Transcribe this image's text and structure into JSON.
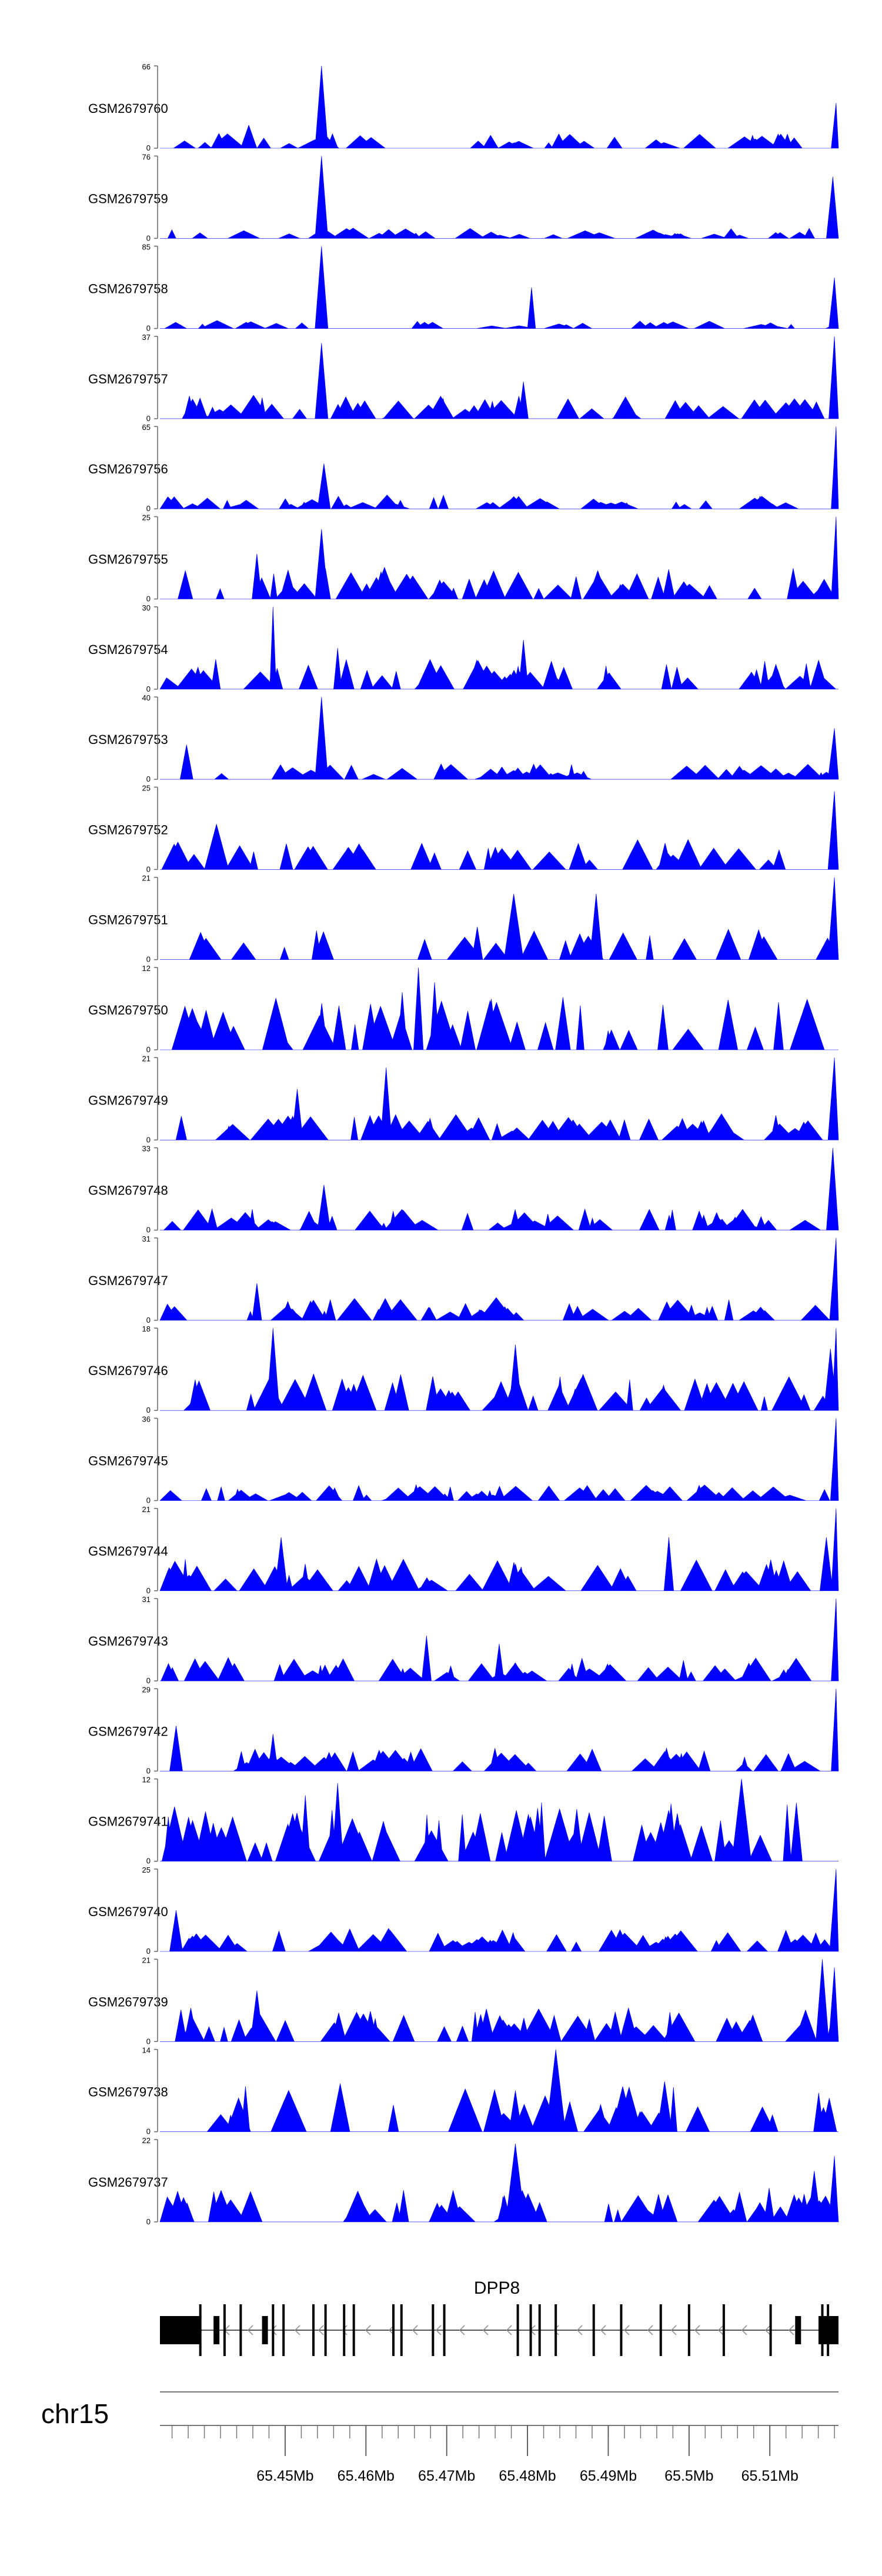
{
  "chart_data": {
    "type": "area",
    "title": "",
    "xlabel": "",
    "ylabel": "",
    "color": "#0000ff",
    "baseline_label": "0",
    "chromosome": "chr15",
    "gene": {
      "name": "DPP8",
      "start_mb": 65.4345,
      "end_mb": 65.5185,
      "strand": "-",
      "exons_mb": [
        65.4395,
        65.4425,
        65.4445,
        65.4485,
        65.4498,
        65.4535,
        65.455,
        65.4573,
        65.4585,
        65.4634,
        65.4644,
        65.4683,
        65.4697,
        65.4788,
        65.4804,
        65.4815,
        65.4835,
        65.4882,
        65.4916,
        65.4965,
        65.5,
        65.5043,
        65.5101,
        65.5165,
        65.5172
      ]
    },
    "x_axis": {
      "range_mb": [
        65.4345,
        65.5185
      ],
      "ticks": [
        65.45,
        65.46,
        65.47,
        65.48,
        65.49,
        65.5,
        65.51
      ],
      "tick_labels": [
        "65.45Mb",
        "65.46Mb",
        "65.47Mb",
        "65.48Mb",
        "65.49Mb",
        "65.5Mb",
        "65.51Mb"
      ]
    },
    "series": [
      {
        "name": "GSM2679760",
        "ymax": 66,
        "seed": 760,
        "base": 0.14,
        "n": 40,
        "spikes": [
          [
            65.4545,
            1.0,
            0.0008
          ],
          [
            65.4455,
            0.28,
            0.001
          ],
          [
            65.5182,
            0.55,
            0.0006
          ]
        ]
      },
      {
        "name": "GSM2679759",
        "ymax": 76,
        "seed": 759,
        "base": 0.1,
        "n": 34,
        "spikes": [
          [
            65.4545,
            1.0,
            0.0008
          ],
          [
            65.5178,
            0.75,
            0.0008
          ]
        ]
      },
      {
        "name": "GSM2679758",
        "ymax": 85,
        "seed": 758,
        "base": 0.08,
        "n": 28,
        "spikes": [
          [
            65.4545,
            1.0,
            0.0008
          ],
          [
            65.4805,
            0.5,
            0.0005
          ],
          [
            65.518,
            0.62,
            0.0007
          ]
        ]
      },
      {
        "name": "GSM2679757",
        "ymax": 37,
        "seed": 757,
        "base": 0.22,
        "n": 44,
        "spikes": [
          [
            65.4545,
            0.92,
            0.0008
          ],
          [
            65.4795,
            0.45,
            0.0006
          ],
          [
            65.518,
            1.0,
            0.0007
          ]
        ]
      },
      {
        "name": "GSM2679756",
        "ymax": 65,
        "seed": 756,
        "base": 0.13,
        "n": 42,
        "spikes": [
          [
            65.4548,
            0.55,
            0.0008
          ],
          [
            65.5182,
            1.0,
            0.0006
          ]
        ]
      },
      {
        "name": "GSM2679755",
        "ymax": 25,
        "seed": 755,
        "base": 0.3,
        "n": 46,
        "spikes": [
          [
            65.4545,
            0.85,
            0.0008
          ],
          [
            65.4465,
            0.55,
            0.0006
          ],
          [
            65.5182,
            1.0,
            0.0006
          ]
        ]
      },
      {
        "name": "GSM2679754",
        "ymax": 30,
        "seed": 754,
        "base": 0.28,
        "n": 48,
        "spikes": [
          [
            65.4485,
            1.0,
            0.0004
          ],
          [
            65.4795,
            0.6,
            0.0006
          ],
          [
            65.4565,
            0.5,
            0.0005
          ]
        ]
      },
      {
        "name": "GSM2679753",
        "ymax": 40,
        "seed": 753,
        "base": 0.15,
        "n": 44,
        "spikes": [
          [
            65.4545,
            1.0,
            0.0008
          ],
          [
            65.4378,
            0.42,
            0.0008
          ],
          [
            65.518,
            0.62,
            0.0008
          ]
        ]
      },
      {
        "name": "GSM2679752",
        "ymax": 25,
        "seed": 752,
        "base": 0.28,
        "n": 34,
        "spikes": [
          [
            65.4415,
            0.55,
            0.0015
          ],
          [
            65.518,
            0.95,
            0.0008
          ]
        ]
      },
      {
        "name": "GSM2679751",
        "ymax": 21,
        "seed": 751,
        "base": 0.33,
        "n": 22,
        "spikes": [
          [
            65.4783,
            0.8,
            0.0012
          ],
          [
            65.4885,
            0.8,
            0.0008
          ],
          [
            65.518,
            1.0,
            0.0008
          ]
        ]
      },
      {
        "name": "GSM2679750",
        "ymax": 12,
        "seed": 750,
        "base": 0.5,
        "n": 34,
        "spikes": [
          [
            65.4665,
            1.0,
            0.0006
          ],
          [
            65.4685,
            0.82,
            0.0006
          ],
          [
            65.4645,
            0.7,
            0.0006
          ]
        ]
      },
      {
        "name": "GSM2679749",
        "ymax": 21,
        "seed": 749,
        "base": 0.25,
        "n": 50,
        "spikes": [
          [
            65.4515,
            0.62,
            0.0007
          ],
          [
            65.4625,
            0.88,
            0.0007
          ],
          [
            65.518,
            1.0,
            0.0008
          ]
        ]
      },
      {
        "name": "GSM2679748",
        "ymax": 33,
        "seed": 748,
        "base": 0.2,
        "n": 48,
        "spikes": [
          [
            65.4548,
            0.55,
            0.0008
          ],
          [
            65.5178,
            1.0,
            0.0008
          ]
        ]
      },
      {
        "name": "GSM2679747",
        "ymax": 31,
        "seed": 747,
        "base": 0.22,
        "n": 46,
        "spikes": [
          [
            65.5182,
            1.0,
            0.0008
          ],
          [
            65.4465,
            0.45,
            0.0006
          ]
        ]
      },
      {
        "name": "GSM2679746",
        "ymax": 18,
        "seed": 746,
        "base": 0.35,
        "n": 44,
        "spikes": [
          [
            65.4485,
            1.0,
            0.0008
          ],
          [
            65.4785,
            0.8,
            0.0008
          ],
          [
            65.5175,
            0.75,
            0.0008
          ],
          [
            65.5182,
            1.0,
            0.0005
          ]
        ]
      },
      {
        "name": "GSM2679745",
        "ymax": 36,
        "seed": 745,
        "base": 0.15,
        "n": 50,
        "spikes": [
          [
            65.5182,
            1.0,
            0.0007
          ]
        ]
      },
      {
        "name": "GSM2679744",
        "ymax": 21,
        "seed": 744,
        "base": 0.3,
        "n": 46,
        "spikes": [
          [
            65.4495,
            0.65,
            0.0008
          ],
          [
            65.4975,
            0.65,
            0.0006
          ],
          [
            65.517,
            0.65,
            0.0008
          ],
          [
            65.5182,
            1.0,
            0.0006
          ]
        ]
      },
      {
        "name": "GSM2679743",
        "ymax": 31,
        "seed": 743,
        "base": 0.22,
        "n": 46,
        "spikes": [
          [
            65.4675,
            0.55,
            0.0006
          ],
          [
            65.4765,
            0.45,
            0.0006
          ],
          [
            65.5182,
            1.0,
            0.0006
          ]
        ]
      },
      {
        "name": "GSM2679742",
        "ymax": 29,
        "seed": 742,
        "base": 0.22,
        "n": 48,
        "spikes": [
          [
            65.4365,
            0.55,
            0.0008
          ],
          [
            65.4485,
            0.45,
            0.0006
          ],
          [
            65.5182,
            1.0,
            0.0006
          ]
        ]
      },
      {
        "name": "GSM2679741",
        "ymax": 12,
        "seed": 741,
        "base": 0.55,
        "n": 60,
        "spikes": [
          [
            65.4565,
            0.95,
            0.0007
          ],
          [
            65.4525,
            0.8,
            0.0006
          ],
          [
            65.5065,
            1.0,
            0.0012
          ]
        ]
      },
      {
        "name": "GSM2679740",
        "ymax": 25,
        "seed": 740,
        "base": 0.22,
        "n": 50,
        "spikes": [
          [
            65.4365,
            0.5,
            0.0008
          ],
          [
            65.5182,
            1.0,
            0.0008
          ]
        ]
      },
      {
        "name": "GSM2679739",
        "ymax": 21,
        "seed": 739,
        "base": 0.32,
        "n": 52,
        "spikes": [
          [
            65.4465,
            0.62,
            0.0008
          ],
          [
            65.5165,
            1.0,
            0.0008
          ],
          [
            65.518,
            0.9,
            0.0007
          ]
        ]
      },
      {
        "name": "GSM2679738",
        "ymax": 14,
        "seed": 738,
        "base": 0.48,
        "n": 32,
        "spikes": [
          [
            65.4835,
            1.0,
            0.0012
          ],
          [
            65.4785,
            0.5,
            0.0008
          ]
        ]
      },
      {
        "name": "GSM2679737",
        "ymax": 22,
        "seed": 737,
        "base": 0.32,
        "n": 54,
        "spikes": [
          [
            65.4785,
            0.95,
            0.0012
          ],
          [
            65.5155,
            0.62,
            0.0008
          ],
          [
            65.518,
            0.8,
            0.0007
          ]
        ]
      }
    ]
  }
}
